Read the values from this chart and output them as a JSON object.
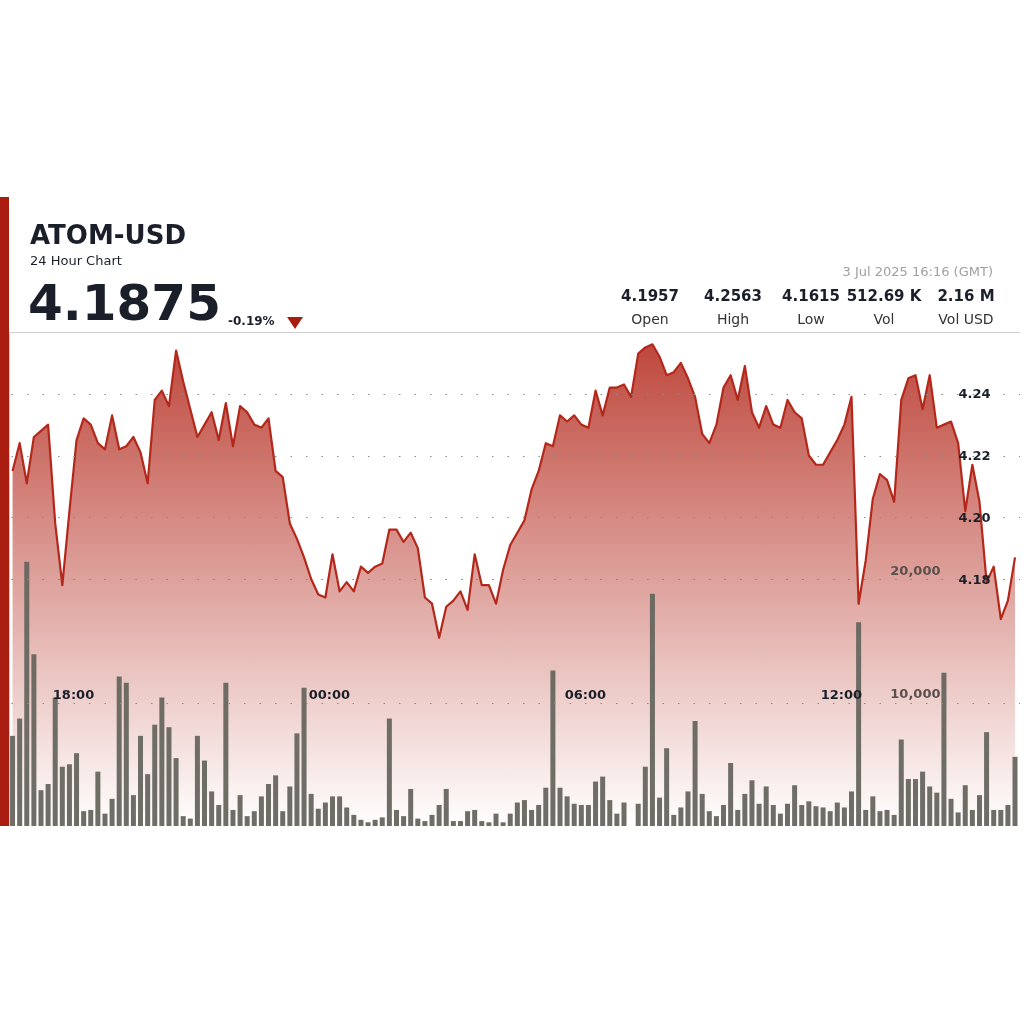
{
  "chart_data": {
    "type": "area",
    "title": "ATOM-USD",
    "subtitle": "24 Hour Chart",
    "annotations": [
      "4.1875",
      "-0.19%",
      "3 Jul 2025 16:16 (GMT)",
      "4.1957",
      "Open",
      "4.2563",
      "High",
      "4.1615",
      "Low",
      "512.69 K",
      "Vol",
      "2.16 M",
      "Vol USD"
    ],
    "x": [
      "2025-07-02T16:35",
      "2025-07-02T16:45",
      "2025-07-02T16:55",
      "2025-07-02T17:05",
      "2025-07-02T17:15",
      "2025-07-02T17:25",
      "2025-07-02T17:35",
      "2025-07-02T17:45",
      "2025-07-02T17:55",
      "2025-07-02T18:05",
      "2025-07-02T18:15",
      "2025-07-02T18:25",
      "2025-07-02T18:35",
      "2025-07-02T18:45",
      "2025-07-02T18:55",
      "2025-07-02T19:05",
      "2025-07-02T19:15",
      "2025-07-02T19:25",
      "2025-07-02T19:35",
      "2025-07-02T19:45",
      "2025-07-02T19:55",
      "2025-07-02T20:05",
      "2025-07-02T20:15",
      "2025-07-02T20:25",
      "2025-07-02T20:35",
      "2025-07-02T20:45",
      "2025-07-02T20:55",
      "2025-07-02T21:05",
      "2025-07-02T21:15",
      "2025-07-02T21:25",
      "2025-07-02T21:35",
      "2025-07-02T21:45",
      "2025-07-02T21:55",
      "2025-07-02T22:05",
      "2025-07-02T22:15",
      "2025-07-02T22:25",
      "2025-07-02T22:35",
      "2025-07-02T22:45",
      "2025-07-02T22:55",
      "2025-07-02T23:05",
      "2025-07-02T23:15",
      "2025-07-02T23:25",
      "2025-07-02T23:35",
      "2025-07-02T23:45",
      "2025-07-02T23:55",
      "2025-07-03T00:05",
      "2025-07-03T00:15",
      "2025-07-03T00:25",
      "2025-07-03T00:35",
      "2025-07-03T00:45",
      "2025-07-03T00:55",
      "2025-07-03T01:05",
      "2025-07-03T01:15",
      "2025-07-03T01:25",
      "2025-07-03T01:35",
      "2025-07-03T01:45",
      "2025-07-03T01:55",
      "2025-07-03T02:05",
      "2025-07-03T02:15",
      "2025-07-03T02:25",
      "2025-07-03T02:35",
      "2025-07-03T02:45",
      "2025-07-03T02:55",
      "2025-07-03T03:05",
      "2025-07-03T03:15",
      "2025-07-03T03:25",
      "2025-07-03T03:35",
      "2025-07-03T03:45",
      "2025-07-03T03:55",
      "2025-07-03T04:05",
      "2025-07-03T04:15",
      "2025-07-03T04:25",
      "2025-07-03T04:35",
      "2025-07-03T04:45",
      "2025-07-03T04:55",
      "2025-07-03T05:05",
      "2025-07-03T05:15",
      "2025-07-03T05:25",
      "2025-07-03T05:35",
      "2025-07-03T05:45",
      "2025-07-03T05:55",
      "2025-07-03T06:05",
      "2025-07-03T06:15",
      "2025-07-03T06:25",
      "2025-07-03T06:35",
      "2025-07-03T06:45",
      "2025-07-03T06:55",
      "2025-07-03T07:05",
      "2025-07-03T07:15",
      "2025-07-03T07:25",
      "2025-07-03T07:35",
      "2025-07-03T07:45",
      "2025-07-03T07:55",
      "2025-07-03T08:05",
      "2025-07-03T08:15",
      "2025-07-03T08:25",
      "2025-07-03T08:35",
      "2025-07-03T08:45",
      "2025-07-03T08:55",
      "2025-07-03T09:05",
      "2025-07-03T09:15",
      "2025-07-03T09:25",
      "2025-07-03T09:35",
      "2025-07-03T09:45",
      "2025-07-03T09:55",
      "2025-07-03T10:05",
      "2025-07-03T10:15",
      "2025-07-03T10:25",
      "2025-07-03T10:35",
      "2025-07-03T10:45",
      "2025-07-03T10:55",
      "2025-07-03T11:05",
      "2025-07-03T11:15",
      "2025-07-03T11:25",
      "2025-07-03T11:35",
      "2025-07-03T11:45",
      "2025-07-03T11:55",
      "2025-07-03T12:05",
      "2025-07-03T12:15",
      "2025-07-03T12:25",
      "2025-07-03T12:35",
      "2025-07-03T12:45",
      "2025-07-03T12:55",
      "2025-07-03T13:05",
      "2025-07-03T13:15",
      "2025-07-03T13:25",
      "2025-07-03T13:35",
      "2025-07-03T13:45",
      "2025-07-03T13:55",
      "2025-07-03T14:05",
      "2025-07-03T14:15",
      "2025-07-03T14:25",
      "2025-07-03T14:35",
      "2025-07-03T14:45",
      "2025-07-03T14:55",
      "2025-07-03T15:05",
      "2025-07-03T15:15",
      "2025-07-03T15:25",
      "2025-07-03T15:35",
      "2025-07-03T15:45",
      "2025-07-03T15:55",
      "2025-07-03T16:05"
    ],
    "series": [
      {
        "color": "#b3281b",
        "values": [
          4.215,
          4.224,
          4.211,
          4.226,
          4.228,
          4.23,
          4.198,
          4.178,
          4.202,
          4.225,
          4.232,
          4.23,
          4.224,
          4.222,
          4.233,
          4.222,
          4.223,
          4.226,
          4.221,
          4.211,
          4.238,
          4.241,
          4.236,
          4.254,
          4.244,
          4.235,
          4.226,
          4.23,
          4.234,
          4.225,
          4.237,
          4.223,
          4.236,
          4.234,
          4.23,
          4.229,
          4.232,
          4.215,
          4.213,
          4.198,
          4.193,
          4.187,
          4.18,
          4.175,
          4.174,
          4.188,
          4.176,
          4.179,
          4.176,
          4.184,
          4.182,
          4.184,
          4.185,
          4.196,
          4.196,
          4.192,
          4.195,
          4.19,
          4.174,
          4.172,
          4.161,
          4.171,
          4.173,
          4.176,
          4.17,
          4.188,
          4.178,
          4.178,
          4.172,
          4.183,
          4.191,
          4.195,
          4.199,
          4.209,
          4.215,
          4.224,
          4.223,
          4.233,
          4.231,
          4.233,
          4.23,
          4.229,
          4.241,
          4.233,
          4.242,
          4.242,
          4.243,
          4.239,
          4.253,
          4.255,
          4.256,
          4.252,
          4.246,
          4.247,
          4.25,
          4.245,
          4.239,
          4.227,
          4.224,
          4.23,
          4.242,
          4.246,
          4.238,
          4.249,
          4.234,
          4.229,
          4.236,
          4.23,
          4.229,
          4.238,
          4.234,
          4.232,
          4.22,
          4.217,
          4.217,
          4.221,
          4.225,
          4.23,
          4.239,
          4.172,
          4.186,
          4.206,
          4.214,
          4.212,
          4.205,
          4.238,
          4.245,
          4.246,
          4.235,
          4.246,
          4.229,
          4.23,
          4.231,
          4.224,
          4.202,
          4.217,
          4.205,
          4.179,
          4.184,
          4.167,
          4.173,
          4.187
        ]
      },
      {
        "type": "bar",
        "axis": "y2",
        "color": "#66665f",
        "values": [
          7300,
          8700,
          21400,
          13900,
          2900,
          3400,
          10400,
          4800,
          5000,
          5900,
          1200,
          1300,
          4400,
          1000,
          2200,
          12100,
          11600,
          2500,
          7300,
          4200,
          8200,
          10400,
          8000,
          5500,
          800,
          600,
          7300,
          5300,
          2800,
          1700,
          11600,
          1300,
          2500,
          800,
          1200,
          2400,
          3400,
          4100,
          1200,
          3200,
          7500,
          11200,
          2600,
          1400,
          1900,
          2400,
          2400,
          1500,
          900,
          500,
          300,
          500,
          700,
          8700,
          1300,
          800,
          3000,
          600,
          400,
          900,
          1700,
          3000,
          400,
          400,
          1200,
          1300,
          400,
          300,
          1000,
          300,
          1000,
          1900,
          2100,
          1300,
          1700,
          3100,
          12600,
          3100,
          2400,
          1800,
          1700,
          1700,
          3600,
          4000,
          2100,
          1000,
          1900,
          null,
          1800,
          4800,
          18800,
          2300,
          6300,
          900,
          1500,
          2800,
          8500,
          2600,
          1200,
          800,
          1700,
          5100,
          1300,
          2600,
          3700,
          1800,
          3200,
          1700,
          1000,
          1800,
          3300,
          1700,
          2000,
          1600,
          1500,
          1200,
          1900,
          1500,
          2800,
          16500,
          1300,
          2400,
          1200,
          1300,
          900,
          7000,
          3800,
          3800,
          4400,
          3200,
          2700,
          12400,
          2200,
          1100,
          3300,
          1300,
          2500,
          7600,
          1300,
          1300,
          1700,
          5600
        ]
      }
    ],
    "xlim": [
      "2025-07-02T16:30",
      "2025-07-03T16:12"
    ],
    "xticks": [
      {
        "value": "2025-07-02T18:00",
        "label": "18:00"
      },
      {
        "value": "2025-07-03T00:00",
        "label": "00:00"
      },
      {
        "value": "2025-07-03T06:00",
        "label": "06:00"
      },
      {
        "value": "2025-07-03T12:00",
        "label": "12:00"
      }
    ],
    "ylim": [
      4.1,
      4.26
    ],
    "yticks": [
      {
        "value": 4.18,
        "label": "4.18"
      },
      {
        "value": 4.2,
        "label": "4.20"
      },
      {
        "value": 4.22,
        "label": "4.22"
      },
      {
        "value": 4.24,
        "label": "4.24"
      }
    ],
    "y2lim": [
      0,
      40000
    ],
    "y2ticks": [
      {
        "value": 10000,
        "label": "10,000"
      },
      {
        "value": 20000,
        "label": "20,000"
      }
    ],
    "grid": "y"
  }
}
